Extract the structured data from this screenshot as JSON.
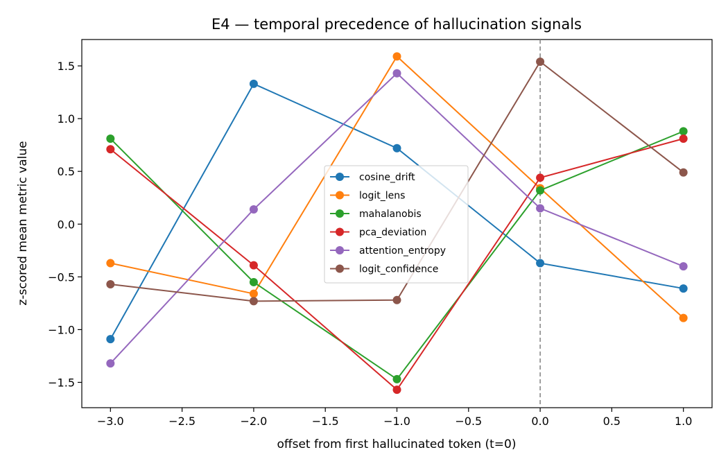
{
  "chart_data": {
    "type": "line",
    "title": "E4 — temporal precedence of hallucination signals",
    "xlabel": "offset from first hallucinated token (t=0)",
    "ylabel": "z-scored mean metric value",
    "x": [
      -3,
      -2,
      -1,
      0,
      1
    ],
    "xlim": [
      -3.2,
      1.2
    ],
    "ylim": [
      -1.74,
      1.75
    ],
    "xticks": [
      -3.0,
      -2.5,
      -2.0,
      -1.5,
      -1.0,
      -0.5,
      0.0,
      0.5,
      1.0
    ],
    "xtick_labels": [
      "−3.0",
      "−2.5",
      "−2.0",
      "−1.5",
      "−1.0",
      "−0.5",
      "0.0",
      "0.5",
      "1.0"
    ],
    "yticks": [
      -1.5,
      -1.0,
      -0.5,
      0.0,
      0.5,
      1.0,
      1.5
    ],
    "ytick_labels": [
      "−1.5",
      "−1.0",
      "−0.5",
      "0.0",
      "0.5",
      "1.0",
      "1.5"
    ],
    "vline": {
      "x": 0.0,
      "style": "dashed",
      "color": "#808080"
    },
    "grid": false,
    "legend_position": "center",
    "series": [
      {
        "name": "cosine_drift",
        "color": "#1f77b4",
        "values": [
          -1.09,
          1.33,
          0.72,
          -0.37,
          -0.61
        ]
      },
      {
        "name": "logit_lens",
        "color": "#ff7f0e",
        "values": [
          -0.37,
          -0.66,
          1.59,
          0.34,
          -0.89
        ]
      },
      {
        "name": "mahalanobis",
        "color": "#2ca02c",
        "values": [
          0.81,
          -0.55,
          -1.47,
          0.32,
          0.88
        ]
      },
      {
        "name": "pca_deviation",
        "color": "#d62728",
        "values": [
          0.71,
          -0.39,
          -1.57,
          0.44,
          0.81
        ]
      },
      {
        "name": "attention_entropy",
        "color": "#9467bd",
        "values": [
          -1.32,
          0.14,
          1.43,
          0.15,
          -0.4
        ]
      },
      {
        "name": "logit_confidence",
        "color": "#8c564b",
        "values": [
          -0.57,
          -0.73,
          -0.72,
          1.54,
          0.49
        ]
      }
    ]
  }
}
